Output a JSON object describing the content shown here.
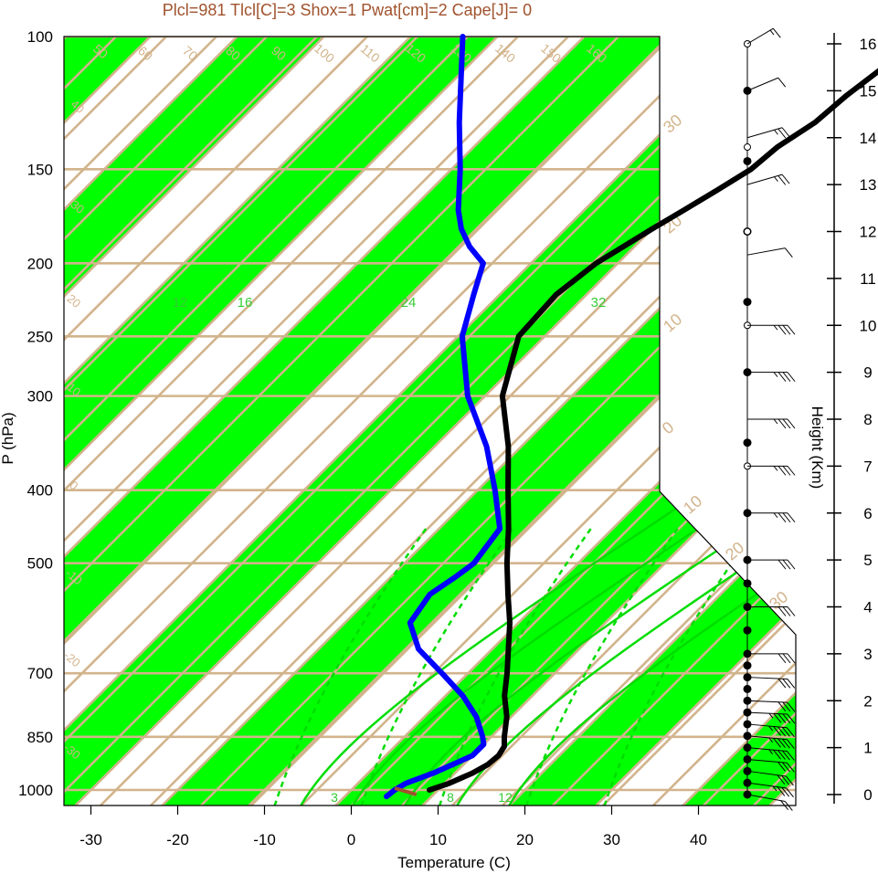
{
  "title": "Plcl=981 Tlcl[C]=3 Shox=1 Pwat[cm]=2 Cape[J]= 0",
  "colors": {
    "band": "#00ff00",
    "isoline": "#d2b48c",
    "temperature": "#000000",
    "dewpoint": "#0000ff",
    "mixing_ratio": "#00dd00",
    "title": "#a0522d",
    "parcel": "#a0522d"
  },
  "chart_data": {
    "type": "line",
    "chart_kind": "skew-T log-P diagram",
    "xlabel": "Temperature (C)",
    "ylabel": "P (hPa)",
    "y2label": "Height (Km)",
    "pressure_ticks": [
      100,
      150,
      200,
      250,
      300,
      400,
      500,
      700,
      850,
      1000
    ],
    "temperature_ticks": [
      -30,
      -20,
      -10,
      0,
      10,
      20,
      30,
      40
    ],
    "height_ticks": [
      0,
      1,
      2,
      3,
      4,
      5,
      6,
      7,
      8,
      9,
      10,
      11,
      12,
      13,
      14,
      15,
      16
    ],
    "xlim": [
      -33,
      48
    ],
    "ylim": [
      1050,
      100
    ],
    "y_scale": "log",
    "skew_isotherm_labels": [
      "-30",
      "-20",
      "-10",
      "0",
      "10",
      "20",
      "30"
    ],
    "dry_adiabat_labels": [
      "50",
      "60",
      "70",
      "80",
      "90",
      "100",
      "110",
      "120",
      "130",
      "140",
      "150",
      "160",
      "40",
      "30",
      "20",
      "10",
      "0",
      "-10",
      "-20",
      "-30",
      "30",
      "20",
      "10",
      "0",
      "10",
      "20",
      "30"
    ],
    "mixing_ratio_labels": [
      "12",
      "16",
      "24",
      "32"
    ],
    "bottom_mixing_labels": [
      "3",
      "8",
      "12"
    ],
    "series": [
      {
        "name": "Temperature",
        "points": [
          [
            1000,
            9.0
          ],
          [
            980,
            10.5
          ],
          [
            950,
            12.0
          ],
          [
            925,
            12.8
          ],
          [
            900,
            13.0
          ],
          [
            875,
            12.6
          ],
          [
            850,
            11.5
          ],
          [
            800,
            9.5
          ],
          [
            750,
            6.8
          ],
          [
            700,
            4.5
          ],
          [
            600,
            -1.0
          ],
          [
            550,
            -4.5
          ],
          [
            500,
            -8.2
          ],
          [
            450,
            -12.0
          ],
          [
            400,
            -16.5
          ],
          [
            350,
            -21.5
          ],
          [
            300,
            -28.0
          ],
          [
            250,
            -33.0
          ],
          [
            220,
            -33.5
          ],
          [
            200,
            -32.5
          ],
          [
            180,
            -30.0
          ],
          [
            170,
            -28.5
          ],
          [
            160,
            -27.0
          ],
          [
            150,
            -25.5
          ],
          [
            140,
            -25.0
          ],
          [
            130,
            -23.5
          ],
          [
            120,
            -23.0
          ],
          [
            110,
            -22.0
          ],
          [
            100,
            -21.0
          ]
        ]
      },
      {
        "name": "Dew point",
        "points": [
          [
            1020,
            4.8
          ],
          [
            1000,
            5.0
          ],
          [
            980,
            5.5
          ],
          [
            950,
            7.5
          ],
          [
            920,
            9.0
          ],
          [
            900,
            10.0
          ],
          [
            870,
            10.0
          ],
          [
            850,
            9.0
          ],
          [
            800,
            6.0
          ],
          [
            750,
            2.0
          ],
          [
            700,
            -3.0
          ],
          [
            650,
            -8.5
          ],
          [
            600,
            -12.5
          ],
          [
            550,
            -13.5
          ],
          [
            520,
            -12.5
          ],
          [
            500,
            -12.0
          ],
          [
            450,
            -13.0
          ],
          [
            400,
            -18.0
          ],
          [
            350,
            -24.0
          ],
          [
            300,
            -32.0
          ],
          [
            250,
            -39.5
          ],
          [
            220,
            -43.0
          ],
          [
            200,
            -45.5
          ],
          [
            190,
            -49.0
          ],
          [
            180,
            -52.0
          ],
          [
            170,
            -54.5
          ],
          [
            150,
            -59.0
          ],
          [
            130,
            -64.5
          ],
          [
            100,
            -74.0
          ]
        ]
      }
    ],
    "winds": [
      {
        "h": 0.0,
        "dir": 290,
        "spd": 20
      },
      {
        "h": 0.25,
        "dir": 285,
        "spd": 25
      },
      {
        "h": 0.5,
        "dir": 285,
        "spd": 30
      },
      {
        "h": 0.75,
        "dir": 280,
        "spd": 30
      },
      {
        "h": 1.0,
        "dir": 280,
        "spd": 35
      },
      {
        "h": 1.25,
        "dir": 280,
        "spd": 35
      },
      {
        "h": 1.5,
        "dir": 280,
        "spd": 35
      },
      {
        "h": 1.75,
        "dir": 275,
        "spd": 35
      },
      {
        "h": 2.0,
        "dir": 275,
        "spd": 30
      },
      {
        "h": 2.5,
        "dir": 275,
        "spd": 30
      },
      {
        "h": 3.0,
        "dir": 270,
        "spd": 30
      },
      {
        "h": 4.0,
        "dir": 270,
        "spd": 30
      },
      {
        "h": 5.0,
        "dir": 270,
        "spd": 30
      },
      {
        "h": 6.0,
        "dir": 270,
        "spd": 25
      },
      {
        "h": 7.0,
        "dir": 270,
        "spd": 25
      },
      {
        "h": 8.0,
        "dir": 270,
        "spd": 25
      },
      {
        "h": 9.0,
        "dir": 270,
        "spd": 25
      },
      {
        "h": 10.0,
        "dir": 270,
        "spd": 25
      },
      {
        "h": 11.5,
        "dir": 250,
        "spd": 10
      },
      {
        "h": 13.0,
        "dir": 240,
        "spd": 15
      },
      {
        "h": 14.0,
        "dir": 240,
        "spd": 15
      },
      {
        "h": 15.0,
        "dir": 230,
        "spd": 10
      },
      {
        "h": 16.0,
        "dir": 220,
        "spd": 5
      }
    ],
    "height_dots_filled": [
      0,
      0.25,
      0.5,
      0.75,
      1.0,
      1.25,
      1.5,
      1.75,
      2.0,
      2.25,
      2.5,
      2.75,
      3.0,
      3.5,
      4.0,
      4.5,
      5.0,
      6.0,
      7.5,
      9.0,
      10.5,
      12.0,
      13.5,
      15.0
    ],
    "height_dots_open": [
      7.0,
      10.0,
      12.0,
      13.8,
      16.0
    ]
  }
}
